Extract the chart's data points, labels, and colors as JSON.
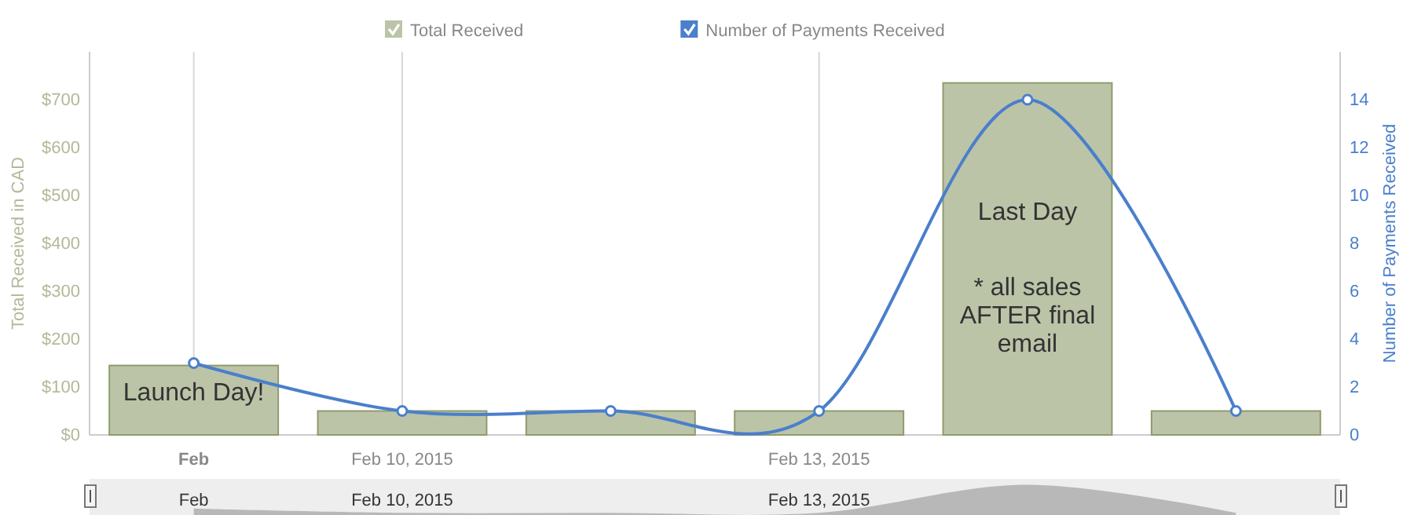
{
  "chart_data": {
    "type": "bar",
    "categories": [
      "Feb",
      "Feb 10, 2015",
      null,
      "Feb 13, 2015",
      null,
      null
    ],
    "ylabel": "Total Received in CAD",
    "y2label": "Number of Payments Received",
    "ylim": [
      0,
      800
    ],
    "yticks": [
      {
        "value": 0,
        "label": "$0"
      },
      {
        "value": 100,
        "label": "$100"
      },
      {
        "value": 200,
        "label": "$200"
      },
      {
        "value": 300,
        "label": "$300"
      },
      {
        "value": 400,
        "label": "$400"
      },
      {
        "value": 500,
        "label": "$500"
      },
      {
        "value": 600,
        "label": "$600"
      },
      {
        "value": 700,
        "label": "$700"
      }
    ],
    "y2lim": [
      0,
      16
    ],
    "y2ticks": [
      0,
      2,
      4,
      6,
      8,
      10,
      12,
      14
    ],
    "series": [
      {
        "name": "Total Received",
        "color": "#bcc4a8",
        "values": [
          145,
          50,
          50,
          50,
          735,
          50
        ]
      },
      {
        "name": "Number of Payments Received",
        "type": "line",
        "axis": "y2",
        "color": "#4a7fcb",
        "values": [
          3,
          1,
          1,
          1,
          14,
          1
        ]
      }
    ],
    "annotations": [
      "Launch Day!",
      "Last Day",
      "* all sales AFTER final email"
    ],
    "grid": "x",
    "legend": "top",
    "marker": "circle"
  }
}
